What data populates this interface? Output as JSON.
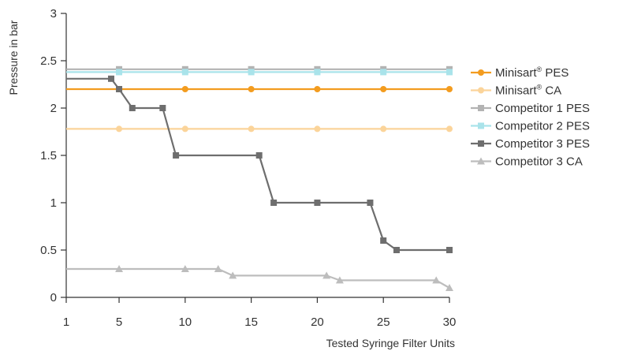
{
  "chart_data": {
    "type": "line",
    "xlabel": "Tested Syringe Filter Units",
    "ylabel": "Pressure in bar",
    "xlim": [
      1,
      30
    ],
    "ylim": [
      0,
      3
    ],
    "xticks": [
      1,
      5,
      10,
      15,
      20,
      25,
      30
    ],
    "xtick_labels": [
      "1",
      "5",
      "10",
      "15",
      "20",
      "25",
      "30"
    ],
    "yticks": [
      0,
      0.5,
      1,
      1.5,
      2,
      2.5,
      3
    ],
    "ytick_labels": [
      "0",
      "0.5",
      "1",
      "1.5",
      "2",
      "2.5",
      "3"
    ],
    "grid": false,
    "legend_position": "right",
    "series": [
      {
        "name": "Minisart® PES",
        "label_base": "Minisart",
        "label_sup": "®",
        "label_rest": " PES",
        "color": "#f39c1f",
        "marker": "circle",
        "points": [
          [
            1,
            2.2
          ],
          [
            5,
            2.2
          ],
          [
            10,
            2.2
          ],
          [
            15,
            2.2
          ],
          [
            20,
            2.2
          ],
          [
            25,
            2.2
          ],
          [
            30,
            2.2
          ]
        ],
        "markers": [
          [
            5,
            2.2
          ],
          [
            10,
            2.2
          ],
          [
            15,
            2.2
          ],
          [
            20,
            2.2
          ],
          [
            25,
            2.2
          ],
          [
            30,
            2.2
          ]
        ]
      },
      {
        "name": "Minisart® CA",
        "label_base": "Minisart",
        "label_sup": "®",
        "label_rest": " CA",
        "color": "#fbd49a",
        "marker": "circle",
        "points": [
          [
            1,
            1.78
          ],
          [
            5,
            1.78
          ],
          [
            10,
            1.78
          ],
          [
            15,
            1.78
          ],
          [
            20,
            1.78
          ],
          [
            25,
            1.78
          ],
          [
            30,
            1.78
          ]
        ],
        "markers": [
          [
            5,
            1.78
          ],
          [
            10,
            1.78
          ],
          [
            15,
            1.78
          ],
          [
            20,
            1.78
          ],
          [
            25,
            1.78
          ],
          [
            30,
            1.78
          ]
        ]
      },
      {
        "name": "Competitor 1 PES",
        "color": "#b3b3b3",
        "marker": "square",
        "points": [
          [
            1,
            2.41
          ],
          [
            5,
            2.41
          ],
          [
            10,
            2.41
          ],
          [
            15,
            2.41
          ],
          [
            20,
            2.41
          ],
          [
            25,
            2.41
          ],
          [
            30,
            2.41
          ]
        ],
        "markers": [
          [
            5,
            2.41
          ],
          [
            10,
            2.41
          ],
          [
            15,
            2.41
          ],
          [
            20,
            2.41
          ],
          [
            25,
            2.41
          ],
          [
            30,
            2.41
          ]
        ]
      },
      {
        "name": "Competitor 2 PES",
        "color": "#a9e3ea",
        "marker": "square",
        "points": [
          [
            1,
            2.38
          ],
          [
            5,
            2.38
          ],
          [
            10,
            2.38
          ],
          [
            15,
            2.38
          ],
          [
            20,
            2.38
          ],
          [
            25,
            2.38
          ],
          [
            30,
            2.38
          ]
        ],
        "markers": [
          [
            5,
            2.38
          ],
          [
            10,
            2.38
          ],
          [
            15,
            2.38
          ],
          [
            20,
            2.38
          ],
          [
            25,
            2.38
          ],
          [
            30,
            2.38
          ]
        ]
      },
      {
        "name": "Competitor 3 PES",
        "color": "#6e6e6e",
        "marker": "square",
        "points": [
          [
            1,
            2.31
          ],
          [
            4.4,
            2.31
          ],
          [
            5,
            2.2
          ],
          [
            6,
            2.0
          ],
          [
            8.3,
            2.0
          ],
          [
            9.3,
            1.5
          ],
          [
            15.6,
            1.5
          ],
          [
            16.7,
            1.0
          ],
          [
            24,
            1.0
          ],
          [
            25,
            0.6
          ],
          [
            26,
            0.5
          ],
          [
            30,
            0.5
          ]
        ],
        "markers": [
          [
            4.4,
            2.31
          ],
          [
            5,
            2.2
          ],
          [
            6,
            2.0
          ],
          [
            8.3,
            2.0
          ],
          [
            9.3,
            1.5
          ],
          [
            15.6,
            1.5
          ],
          [
            16.7,
            1.0
          ],
          [
            20,
            1.0
          ],
          [
            24,
            1.0
          ],
          [
            25,
            0.6
          ],
          [
            26,
            0.5
          ],
          [
            30,
            0.5
          ]
        ]
      },
      {
        "name": "Competitor 3 CA",
        "color": "#bdbdbd",
        "marker": "triangle",
        "points": [
          [
            1,
            0.3
          ],
          [
            5,
            0.3
          ],
          [
            10,
            0.3
          ],
          [
            12.5,
            0.3
          ],
          [
            13.6,
            0.23
          ],
          [
            20.7,
            0.23
          ],
          [
            21.7,
            0.18
          ],
          [
            29,
            0.18
          ],
          [
            30,
            0.1
          ]
        ],
        "markers": [
          [
            5,
            0.3
          ],
          [
            10,
            0.3
          ],
          [
            12.5,
            0.3
          ],
          [
            13.6,
            0.23
          ],
          [
            20.7,
            0.23
          ],
          [
            21.7,
            0.18
          ],
          [
            29,
            0.18
          ],
          [
            30,
            0.1
          ]
        ]
      }
    ]
  }
}
